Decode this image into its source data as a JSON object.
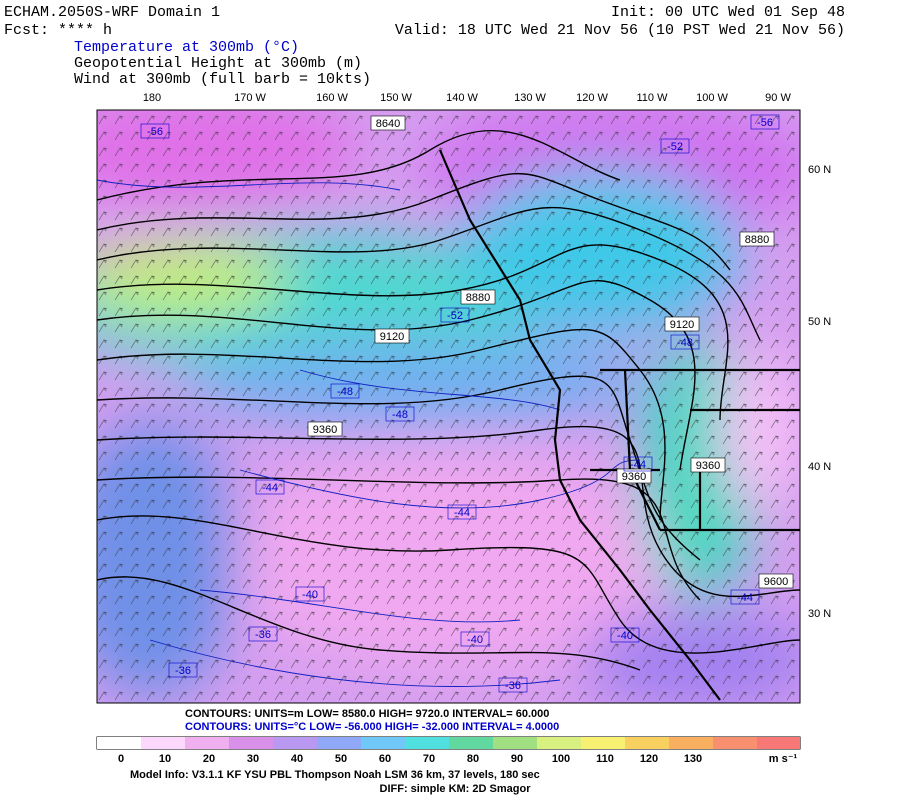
{
  "header": {
    "model": "ECHAM.2050S-WRF Domain 1",
    "forecast": "Fcst: **** h",
    "init": "Init: 00 UTC Wed 01 Sep 48",
    "valid": "Valid: 18 UTC Wed 21 Nov 56 (10 PST Wed 21 Nov 56)",
    "fields": [
      "Temperature at 300mb (°C)",
      "Geopotential Height at 300mb (m)",
      "Wind at 300mb (full barb = 10kts)"
    ]
  },
  "map": {
    "longitudes": [
      "180",
      "170 W",
      "160 W",
      "150 W",
      "140 W",
      "130 W",
      "120 W",
      "110 W",
      "100 W",
      "90 W"
    ],
    "latitudes": [
      "60 N",
      "50 N",
      "40 N",
      "30 N"
    ],
    "height_labels": [
      "8640",
      "8880",
      "8880",
      "9120",
      "9120",
      "9360",
      "9360",
      "9360",
      "9600"
    ],
    "temperature_labels": [
      "-56",
      "-52",
      "-56",
      "-52",
      "-48",
      "-48",
      "-48",
      "-44",
      "-44",
      "-44",
      "-44",
      "-40",
      "-36",
      "-36",
      "-40",
      "-40",
      "-36"
    ]
  },
  "legend": {
    "height_contours": "CONTOURS:  UNITS=m  LOW=  8580.0     HIGH=  9720.0     INTERVAL=   60.000",
    "temperature_contours": "CONTOURS:  UNITS=°C  LOW= -56.000     HIGH= -32.000     INTERVAL=   4.0000",
    "colorbar_labels": [
      "0",
      "10",
      "20",
      "30",
      "40",
      "50",
      "60",
      "70",
      "80",
      "90",
      "100",
      "110",
      "120",
      "130"
    ],
    "colorbar_unit": "m s⁻¹"
  },
  "footer": {
    "model_info": "Model Info: V3.1.1    KF     YSU PBL   Thompson     Noah LSM   36 km,    37 levels,   180 sec",
    "diffusion": "DIFF: simple KM: 2D Smagor"
  }
}
